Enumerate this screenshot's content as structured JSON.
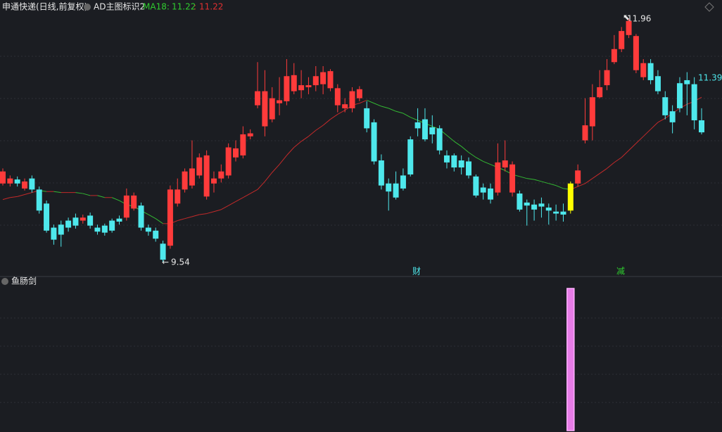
{
  "chart_data": {
    "type": "candlestick",
    "title": "申通快递(日线,前复权)",
    "indicator_name": "AD主图标识2",
    "ma_label": "MA18:",
    "ma_value": 11.22,
    "ma_separator": ":",
    "ma_value_2": 11.22,
    "high_label": 11.96,
    "low_label": 9.54,
    "last_label": "11.390",
    "annotations": [
      "财",
      "减"
    ],
    "open": [
      10.32,
      10.32,
      10.36,
      10.27,
      10.37,
      10.26,
      10.12,
      9.88,
      9.91,
      9.95,
      9.98,
      9.95,
      10.0,
      9.88,
      9.9,
      9.95,
      9.97,
      9.98,
      10.07,
      10.1,
      9.88,
      9.85,
      9.72,
      9.7,
      10.12,
      10.26,
      10.3,
      10.4,
      10.19,
      10.32,
      10.37,
      10.4,
      10.58,
      10.6,
      10.79,
      11.1,
      10.89,
      10.96,
      11.12,
      11.14,
      11.24,
      11.25,
      11.28,
      11.3,
      11.31,
      11.27,
      11.1,
      11.07,
      11.07,
      11.17,
      11.07,
      10.93,
      10.55,
      10.32,
      10.32,
      10.4,
      10.76,
      10.93,
      10.96,
      10.88,
      10.87,
      10.6,
      10.6,
      10.55,
      10.54,
      10.39,
      10.28,
      10.27,
      10.23,
      10.48,
      10.23,
      10.22,
      10.13,
      10.11,
      10.12,
      10.08,
      10.04,
      10.04,
      10.05,
      10.32,
      10.75,
      10.89,
      11.18,
      11.3,
      11.53,
      11.66,
      11.8,
      11.45,
      11.38,
      11.52,
      11.39,
      11.18,
      11.04,
      11.32,
      11.35,
      11.31,
      10.95
    ],
    "high": [
      10.47,
      10.4,
      10.39,
      10.37,
      10.4,
      10.29,
      10.15,
      9.91,
      9.95,
      9.98,
      10.02,
      10.01,
      10.03,
      9.91,
      9.92,
      9.97,
      10.0,
      10.27,
      10.23,
      10.13,
      9.91,
      9.88,
      9.75,
      10.3,
      10.37,
      10.47,
      10.75,
      10.62,
      10.65,
      10.44,
      10.51,
      10.72,
      10.75,
      10.89,
      10.86,
      11.53,
      11.45,
      11.28,
      11.38,
      11.56,
      11.52,
      11.45,
      11.38,
      11.49,
      11.49,
      11.46,
      11.31,
      11.17,
      11.28,
      11.29,
      11.14,
      10.96,
      10.61,
      10.37,
      10.44,
      10.47,
      10.79,
      11.07,
      11.07,
      11.0,
      10.9,
      10.65,
      10.62,
      10.6,
      10.58,
      10.41,
      10.32,
      10.32,
      10.72,
      10.75,
      10.54,
      10.25,
      10.16,
      10.16,
      10.18,
      10.12,
      10.11,
      10.12,
      10.34,
      10.51,
      11.17,
      11.31,
      11.45,
      11.56,
      11.8,
      11.88,
      11.96,
      11.81,
      11.56,
      11.56,
      11.45,
      11.24,
      11.1,
      11.38,
      11.43,
      11.38,
      11.07
    ],
    "low": [
      10.3,
      10.29,
      10.29,
      10.25,
      10.23,
      10.02,
      9.83,
      9.71,
      9.69,
      9.84,
      9.87,
      9.92,
      9.87,
      9.81,
      9.8,
      9.83,
      9.91,
      9.95,
      10.05,
      9.85,
      9.8,
      9.74,
      9.54,
      9.67,
      10.09,
      10.23,
      10.27,
      10.37,
      10.16,
      10.23,
      10.33,
      10.37,
      10.54,
      10.57,
      10.76,
      11.07,
      10.79,
      10.93,
      11.0,
      11.1,
      11.21,
      11.17,
      11.21,
      11.24,
      11.21,
      11.24,
      11.03,
      11.03,
      11.03,
      11.14,
      10.83,
      10.51,
      10.26,
      10.05,
      10.16,
      10.25,
      10.39,
      10.79,
      10.74,
      10.72,
      10.61,
      10.47,
      10.44,
      10.41,
      10.37,
      10.18,
      10.16,
      10.12,
      10.2,
      10.44,
      10.19,
      10.04,
      9.9,
      9.95,
      9.98,
      9.91,
      9.95,
      9.94,
      10.02,
      10.29,
      10.72,
      10.75,
      11.17,
      11.25,
      11.51,
      11.63,
      11.77,
      11.42,
      11.35,
      11.31,
      11.21,
      10.96,
      10.82,
      11.03,
      11.0,
      10.86,
      10.81
    ],
    "close": [
      10.44,
      10.37,
      10.32,
      10.34,
      10.26,
      10.05,
      9.85,
      9.76,
      9.81,
      9.88,
      9.9,
      9.98,
      9.9,
      9.84,
      9.83,
      9.85,
      9.94,
      10.2,
      10.2,
      9.88,
      9.84,
      9.77,
      9.56,
      10.26,
      10.26,
      10.44,
      10.47,
      10.58,
      10.6,
      10.37,
      10.44,
      10.68,
      10.67,
      10.81,
      10.82,
      11.24,
      11.24,
      11.17,
      11.15,
      11.39,
      11.4,
      11.3,
      11.3,
      11.39,
      11.43,
      11.44,
      11.27,
      11.11,
      11.24,
      11.26,
      10.87,
      10.54,
      10.3,
      10.24,
      10.18,
      10.27,
      10.41,
      10.87,
      10.76,
      10.81,
      10.65,
      10.53,
      10.48,
      10.48,
      10.4,
      10.2,
      10.23,
      10.16,
      10.53,
      10.55,
      10.51,
      10.06,
      10.1,
      10.06,
      10.09,
      10.05,
      10.02,
      10.01,
      10.32,
      10.45,
      10.9,
      11.18,
      11.28,
      11.45,
      11.66,
      11.84,
      11.94,
      11.79,
      11.52,
      11.35,
      11.24,
      11.0,
      10.93,
      11.07,
      11.31,
      10.95,
      10.83
    ],
    "colors": [
      "#ff3b3b",
      "#ff3b3b",
      "#4ee8ec",
      "#ff3b3b",
      "#4ee8ec",
      "#4ee8ec",
      "#4ee8ec",
      "#4ee8ec",
      "#4ee8ec",
      "#4ee8ec",
      "#4ee8ec",
      "#ff3b3b",
      "#4ee8ec",
      "#4ee8ec",
      "#4ee8ec",
      "#4ee8ec",
      "#4ee8ec",
      "#ff3b3b",
      "#ff3b3b",
      "#4ee8ec",
      "#4ee8ec",
      "#4ee8ec",
      "#4ee8ec",
      "#ff3b3b",
      "#ff3b3b",
      "#ff3b3b",
      "#ff3b3b",
      "#ff3b3b",
      "#ff3b3b",
      "#ff3b3b",
      "#ff3b3b",
      "#ff3b3b",
      "#ff3b3b",
      "#ff3b3b",
      "#ff3b3b",
      "#ff3b3b",
      "#ff3b3b",
      "#ff3b3b",
      "#ff3b3b",
      "#ff3b3b",
      "#ff3b3b",
      "#ff3b3b",
      "#ff3b3b",
      "#ff3b3b",
      "#ff3b3b",
      "#ff3b3b",
      "#ff3b3b",
      "#ff3b3b",
      "#ff3b3b",
      "#ff3b3b",
      "#4ee8ec",
      "#4ee8ec",
      "#4ee8ec",
      "#4ee8ec",
      "#4ee8ec",
      "#4ee8ec",
      "#4ee8ec",
      "#4ee8ec",
      "#4ee8ec",
      "#4ee8ec",
      "#4ee8ec",
      "#4ee8ec",
      "#4ee8ec",
      "#4ee8ec",
      "#4ee8ec",
      "#4ee8ec",
      "#4ee8ec",
      "#4ee8ec",
      "#ff3b3b",
      "#ff3b3b",
      "#ff3b3b",
      "#4ee8ec",
      "#4ee8ec",
      "#4ee8ec",
      "#4ee8ec",
      "#4ee8ec",
      "#4ee8ec",
      "#4ee8ec",
      "#ffff00",
      "#ff3b3b",
      "#ff3b3b",
      "#ff3b3b",
      "#ff3b3b",
      "#ff3b3b",
      "#ff3b3b",
      "#ff3b3b",
      "#ff3b3b",
      "#ff3b3b",
      "#ff3b3b",
      "#4ee8ec",
      "#4ee8ec",
      "#4ee8ec",
      "#4ee8ec",
      "#4ee8ec",
      "#4ee8ec",
      "#4ee8ec",
      "#4ee8ec"
    ],
    "ma": [
      10.16,
      10.18,
      10.19,
      10.21,
      10.23,
      10.25,
      10.24,
      10.24,
      10.23,
      10.23,
      10.23,
      10.22,
      10.2,
      10.2,
      10.18,
      10.18,
      10.15,
      10.11,
      10.09,
      10.05,
      10.01,
      9.97,
      9.92,
      9.92,
      9.95,
      9.97,
      9.99,
      10.01,
      10.02,
      10.04,
      10.06,
      10.1,
      10.14,
      10.18,
      10.22,
      10.26,
      10.34,
      10.43,
      10.51,
      10.6,
      10.68,
      10.74,
      10.79,
      10.85,
      10.9,
      10.96,
      11.01,
      11.05,
      11.1,
      11.12,
      11.15,
      11.12,
      11.09,
      11.07,
      11.04,
      11.02,
      10.98,
      10.95,
      10.92,
      10.89,
      10.86,
      10.8,
      10.74,
      10.69,
      10.63,
      10.58,
      10.54,
      10.51,
      10.48,
      10.45,
      10.41,
      10.39,
      10.37,
      10.36,
      10.34,
      10.32,
      10.3,
      10.27,
      10.26,
      10.29,
      10.32,
      10.37,
      10.42,
      10.47,
      10.53,
      10.58,
      10.65,
      10.72,
      10.79,
      10.86,
      10.93,
      10.97,
      11.02,
      11.07,
      11.11,
      11.14,
      11.18
    ],
    "ma_up_color": "#c42a2a",
    "ma_down_color": "#33b833",
    "sub_title": "鱼肠剑",
    "sub_values": [
      0,
      0,
      0,
      0,
      0,
      0,
      0,
      0,
      0,
      0,
      0,
      0,
      0,
      0,
      0,
      0,
      0,
      0,
      0,
      0,
      0,
      0,
      0,
      0,
      0,
      0,
      0,
      0,
      0,
      0,
      0,
      0,
      0,
      0,
      0,
      0,
      0,
      0,
      0,
      0,
      0,
      0,
      0,
      0,
      0,
      0,
      0,
      0,
      0,
      0,
      0,
      0,
      0,
      0,
      0,
      0,
      0,
      0,
      0,
      0,
      0,
      0,
      0,
      0,
      0,
      0,
      0,
      0,
      0,
      0,
      0,
      0,
      0,
      0,
      0,
      0,
      0,
      0,
      1,
      0,
      0,
      0,
      0,
      0,
      0,
      0,
      0,
      0,
      0,
      0,
      0,
      0,
      0,
      0,
      0,
      0,
      0
    ],
    "sub_color": "#e77ce7"
  }
}
